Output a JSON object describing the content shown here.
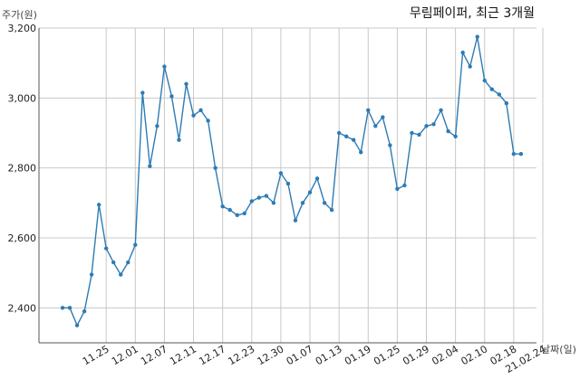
{
  "chart_data": {
    "type": "line",
    "title": "무림페이퍼, 최근 3개월",
    "ylabel": "주가(원)",
    "xlabel": "날짜(일)",
    "ylim": [
      2300,
      3200
    ],
    "yticks": [
      2400,
      2600,
      2800,
      3000,
      3200
    ],
    "ytick_labels": [
      "2,400",
      "2,600",
      "2,800",
      "3,000",
      "3,200"
    ],
    "xticks": [
      "11.25",
      "12.01",
      "12.07",
      "12.11",
      "12.17",
      "12.23",
      "12.30",
      "01.07",
      "01.13",
      "01.19",
      "01.25",
      "01.29",
      "02.04",
      "02.10",
      "02.18",
      "21.02.24"
    ],
    "xtick_positions": [
      6,
      10,
      14,
      18,
      22,
      26,
      30,
      34,
      38,
      42,
      46,
      50,
      54,
      58,
      62,
      66
    ],
    "grid": true,
    "color": "#2e7bb4",
    "x": [
      0,
      1,
      2,
      3,
      4,
      5,
      6,
      7,
      8,
      9,
      10,
      11,
      12,
      13,
      14,
      15,
      16,
      17,
      18,
      19,
      20,
      21,
      22,
      23,
      24,
      25,
      26,
      27,
      28,
      29,
      30,
      31,
      32,
      33,
      34,
      35,
      36,
      37,
      38,
      39,
      40,
      41,
      42,
      43,
      44,
      45,
      46,
      47,
      48,
      49,
      50,
      51,
      52,
      53,
      54,
      55,
      56,
      57,
      58,
      59,
      60,
      61,
      62,
      63
    ],
    "values": [
      2400,
      2400,
      2350,
      2390,
      2495,
      2695,
      2570,
      2530,
      2495,
      2530,
      2580,
      3015,
      2805,
      2920,
      3090,
      3005,
      2880,
      3040,
      2950,
      2965,
      2935,
      2800,
      2690,
      2680,
      2665,
      2670,
      2705,
      2715,
      2720,
      2700,
      2785,
      2755,
      2650,
      2700,
      2730,
      2770,
      2700,
      2680,
      2900,
      2890,
      2880,
      2845,
      2965,
      2920,
      2945,
      2865,
      2740,
      2750,
      2900,
      2895,
      2920,
      2925,
      2965,
      2905,
      2890,
      3130,
      3090,
      3175,
      3050,
      3025,
      3010,
      2985,
      2840,
      2840
    ]
  }
}
